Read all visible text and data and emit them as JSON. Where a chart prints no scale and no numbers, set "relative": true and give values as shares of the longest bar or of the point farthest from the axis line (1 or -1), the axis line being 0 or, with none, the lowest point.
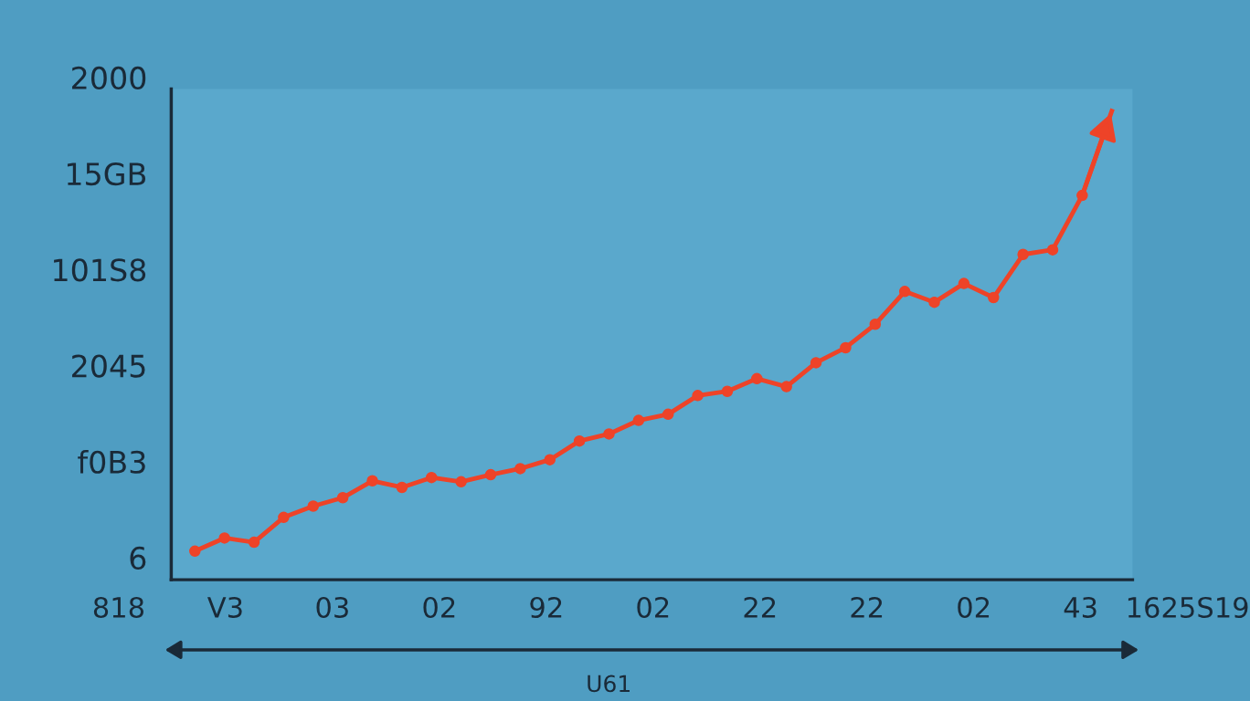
{
  "chart_data": {
    "type": "line",
    "relative": true,
    "xlabel": "U61",
    "marker": "circle",
    "line_style": "solid",
    "categories": [
      null,
      null,
      null,
      null,
      null,
      null,
      null,
      null,
      null,
      null,
      null,
      null,
      null,
      null,
      null,
      null,
      null,
      null,
      null,
      null,
      null,
      null,
      null,
      null,
      null,
      null,
      null,
      null,
      null,
      null,
      null,
      null
    ],
    "series": [
      {
        "color": "#ee4328",
        "values": [
          0.061,
          0.089,
          0.08,
          0.133,
          0.157,
          0.175,
          0.211,
          0.197,
          0.218,
          0.209,
          0.224,
          0.237,
          0.256,
          0.296,
          0.311,
          0.34,
          0.353,
          0.393,
          0.402,
          0.429,
          0.412,
          0.463,
          0.495,
          0.545,
          0.615,
          0.592,
          0.632,
          0.602,
          0.694,
          0.704,
          0.82,
          1
        ]
      }
    ],
    "annotations": [
      "2000",
      "15GB",
      "101S8",
      "2045",
      "f0B3",
      "6",
      "818",
      "V3",
      "03",
      "02",
      "92",
      "02",
      "22",
      "22",
      "02",
      "43",
      "1625S19"
    ]
  }
}
